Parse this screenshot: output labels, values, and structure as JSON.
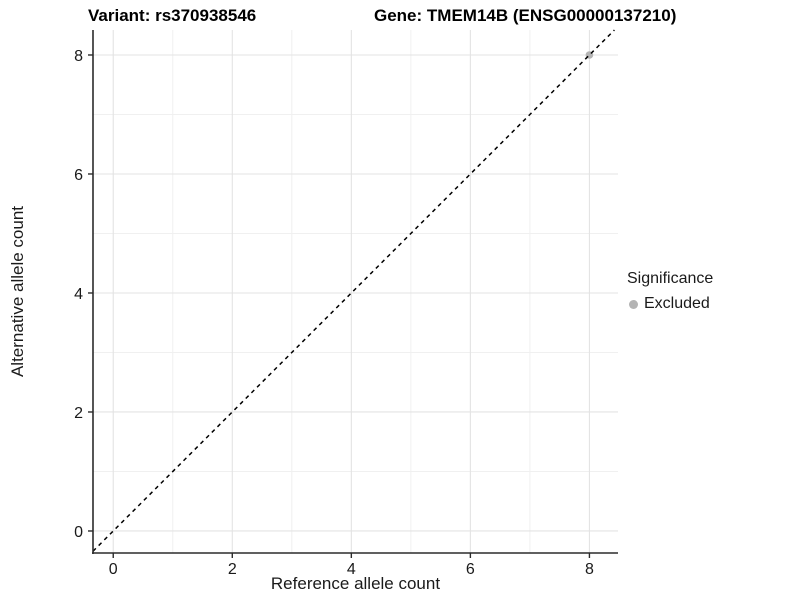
{
  "title": {
    "left": "Variant: rs370938546",
    "right": "Gene: TMEM14B (ENSG00000137210)"
  },
  "chart_data": {
    "type": "scatter",
    "xlabel": "Reference allele count",
    "ylabel": "Alternative allele count",
    "xticks": [
      0,
      2,
      4,
      6,
      8
    ],
    "yticks": [
      0,
      2,
      4,
      6,
      8
    ],
    "minor_xticks": [
      1,
      3,
      5,
      7
    ],
    "minor_yticks": [
      1,
      3,
      5,
      7
    ],
    "xlim": [
      -0.34,
      8.48
    ],
    "ylim": [
      -0.37,
      8.42
    ],
    "grid": true,
    "points": [
      {
        "x": 8,
        "y": 8,
        "series": "Excluded"
      }
    ],
    "identity_line": {
      "slope": 1,
      "intercept": 0,
      "style": "dashed",
      "color": "#000000"
    },
    "legend": {
      "title": "Significance",
      "position": "right",
      "entries": [
        {
          "label": "Excluded",
          "color": "#b4b4b4"
        }
      ]
    },
    "colors": {
      "point_excluded": "#b4b4b4",
      "grid_major": "#e3e3e3",
      "grid_minor": "#f0f0f0",
      "axis_line": "#2b2b2b",
      "tick_label": "#1a1a1a"
    }
  }
}
